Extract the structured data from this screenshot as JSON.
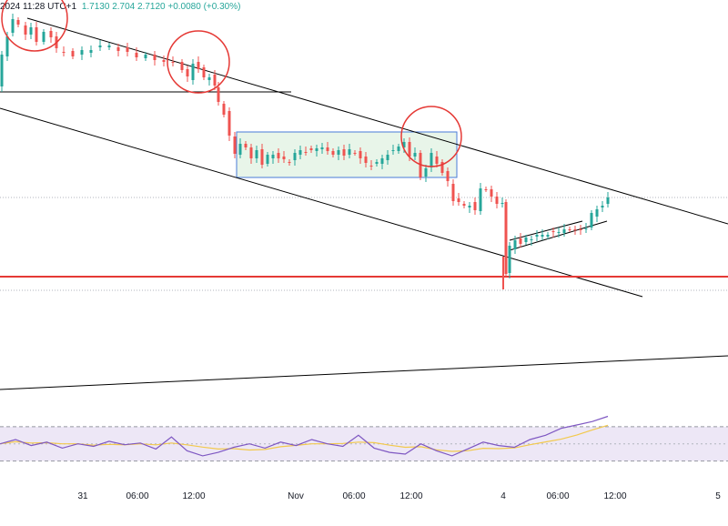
{
  "header": {
    "datetime": "2024 11:28 UTC+1",
    "values": "1.7130  2.704  2.7120  +0.0080 (+0.30%)"
  },
  "colors": {
    "up": "#26a69a",
    "down": "#ef5350",
    "annotation_circle": "#e53935",
    "support_line": "#e53935",
    "channel": "#000000",
    "range_box_fill": "#e8f5e9",
    "range_box_stroke": "#4a7bd8",
    "rsi_line": "#7e57c2",
    "rsi_ma": "#f2c94c",
    "rsi_band": "#ede7f6"
  },
  "chart_data": [
    {
      "type": "candlestick",
      "x_ticks": [
        "31",
        "06:00",
        "12:00",
        "Nov",
        "06:00",
        "12:00",
        "4",
        "06:00",
        "12:00",
        "5"
      ],
      "grid": false,
      "annotations": [
        "circle",
        "circle",
        "circle",
        "descending channel",
        "consolidation box",
        "rising wedge",
        "horizontal support line"
      ]
    },
    {
      "type": "line",
      "indicator": "RSI",
      "series": [
        {
          "values": [
            50,
            55,
            48,
            52,
            45,
            50,
            47,
            53,
            49,
            51,
            44,
            58,
            42,
            36,
            40,
            46,
            50,
            45,
            52,
            48,
            55,
            50,
            47,
            60,
            45,
            40,
            38,
            50,
            42,
            36,
            44,
            52,
            48,
            46,
            55,
            60,
            68,
            72,
            76,
            82
          ]
        }
      ],
      "bands": [
        30,
        70
      ]
    }
  ]
}
